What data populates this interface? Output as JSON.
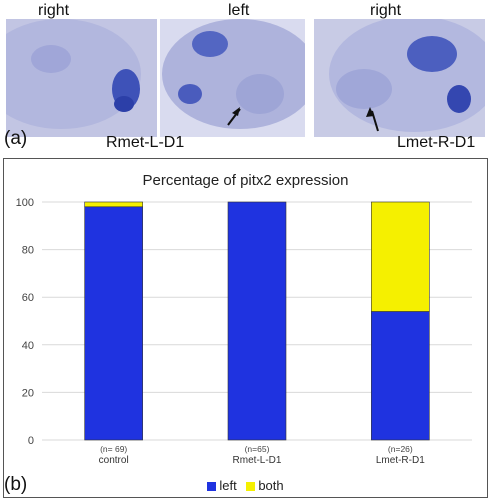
{
  "panel_a": {
    "letter": "(a)",
    "side_labels": [
      "right",
      "left",
      "right"
    ],
    "photo_labels": [
      "Rmet-L-D1",
      "Lmet-R-D1"
    ]
  },
  "panel_b": {
    "letter": "(b)"
  },
  "colors": {
    "left": "#1f33e0",
    "both": "#f5f000",
    "photo_bg": "#c9cbe6",
    "stain": "#5a6bc4"
  },
  "chart_data": {
    "type": "bar",
    "stacked": true,
    "title": "Percentage of pitx2 expression",
    "categories": [
      "control",
      "Rmet-L-D1",
      "Lmet-R-D1"
    ],
    "n_labels": [
      "(n= 69)",
      "(n=65)",
      "(n=26)"
    ],
    "series": [
      {
        "name": "left",
        "values": [
          98,
          100,
          54
        ]
      },
      {
        "name": "both",
        "values": [
          2,
          0,
          46
        ]
      }
    ],
    "ylim": [
      0,
      100
    ],
    "yticks": [
      0,
      20,
      40,
      60,
      80,
      100
    ],
    "grid": true,
    "legend_position": "bottom"
  }
}
